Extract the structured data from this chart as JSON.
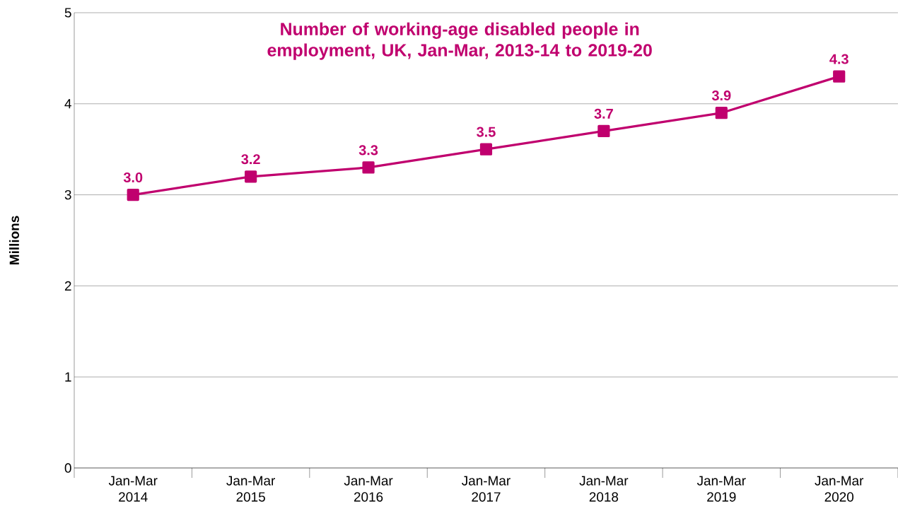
{
  "chart_data": {
    "type": "line",
    "title": "Number of working-age disabled people in employment, UK, Jan-Mar, 2013-14 to 2019-20",
    "ylabel": "Millions",
    "categories": [
      "Jan-Mar 2014",
      "Jan-Mar 2015",
      "Jan-Mar 2016",
      "Jan-Mar 2017",
      "Jan-Mar 2018",
      "Jan-Mar 2019",
      "Jan-Mar 2020"
    ],
    "series": [
      {
        "color": "#c0006e",
        "values": [
          3.0,
          3.2,
          3.3,
          3.5,
          3.7,
          3.9,
          4.3
        ],
        "value_labels": [
          "3.0",
          "3.2",
          "3.3",
          "3.5",
          "3.7",
          "3.9",
          "4.3"
        ]
      }
    ],
    "ylim": [
      0,
      5
    ],
    "yticks": [
      0,
      1,
      2,
      3,
      4,
      5
    ],
    "grid": "y",
    "marker": "square",
    "line_style": "solid"
  }
}
